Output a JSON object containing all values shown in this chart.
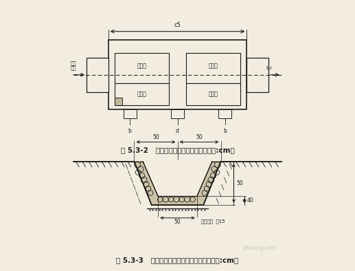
{
  "bg_color": "#f2ede0",
  "line_color": "#1a1a1a",
  "title1": "图 5.3-2   干砌石沉砂池平面设计图（单位:cm）",
  "title2": "图 5.3-3   干砌石排水沟典型设计断面图（单位:cm）",
  "watermark": "zhulong.com",
  "top_labels": [
    "沉砂室",
    "格栅室",
    "沉积区",
    "溢流孔"
  ],
  "dim_top": "c5",
  "dim_left": "水流方向",
  "dim_right": "b.r",
  "bot_labels": [
    "b",
    "d",
    "b"
  ],
  "sec_dim_top_left": "50",
  "sec_dim_top_right": "50",
  "sec_dim_right1": "50",
  "sec_dim_right2": "40",
  "sec_dim_bot": "50",
  "sec_label_sand": "砂砾垫层  厚15"
}
